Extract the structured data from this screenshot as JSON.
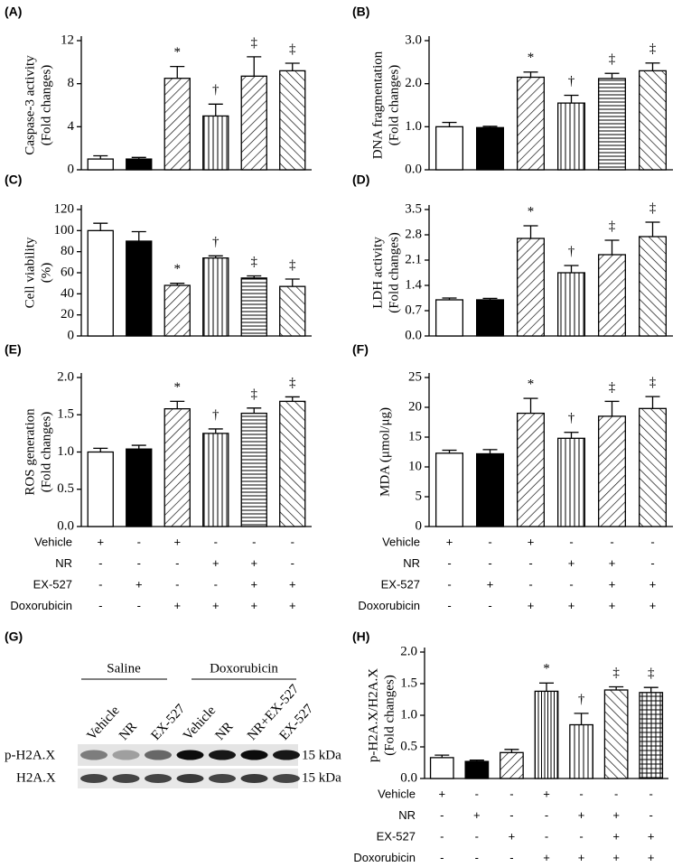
{
  "chart_data": [
    {
      "type": "bar",
      "panel": "(A)",
      "ylabel": [
        "Caspase-3 activity",
        "(Fold changes)"
      ],
      "ylim": [
        0,
        12
      ],
      "yticks": [
        0,
        4,
        8,
        12
      ],
      "categories": [
        null,
        null,
        null,
        null,
        null,
        null
      ],
      "values": [
        1.0,
        1.0,
        8.5,
        5.0,
        8.7,
        9.2
      ],
      "errors": [
        0.3,
        0.15,
        1.1,
        1.1,
        1.8,
        0.7
      ],
      "markers": [
        null,
        null,
        "*",
        "†",
        "‡",
        "‡"
      ],
      "patterns": [
        "none",
        "solid",
        "diag",
        "vert",
        "diag",
        "back"
      ],
      "color": "#000000"
    },
    {
      "type": "bar",
      "panel": "(B)",
      "ylabel": [
        "DNA fragmentation",
        "(Fold changes)"
      ],
      "ylim": [
        0,
        3
      ],
      "yticks": [
        {
          "value": 0,
          "label": "0.0"
        },
        {
          "value": 1,
          "label": "1.0"
        },
        {
          "value": 2,
          "label": "2.0"
        },
        {
          "value": 3,
          "label": "3.0"
        }
      ],
      "categories": [
        null,
        null,
        null,
        null,
        null,
        null
      ],
      "values": [
        1.0,
        0.98,
        2.15,
        1.55,
        2.12,
        2.3
      ],
      "errors": [
        0.1,
        0.03,
        0.12,
        0.18,
        0.12,
        0.18
      ],
      "markers": [
        null,
        null,
        "*",
        "†",
        "‡",
        "‡"
      ],
      "patterns": [
        "none",
        "solid",
        "diag",
        "vert",
        "horiz",
        "back"
      ],
      "color": "#000000"
    },
    {
      "type": "bar",
      "panel": "(C)",
      "ylabel": [
        "Cell viability",
        "(%)"
      ],
      "ylim": [
        0,
        120
      ],
      "yticks": [
        0,
        20,
        40,
        60,
        80,
        100,
        120
      ],
      "categories": [
        null,
        null,
        null,
        null,
        null,
        null
      ],
      "values": [
        100,
        90,
        48,
        74,
        55,
        47
      ],
      "errors": [
        7,
        9,
        2,
        2,
        2,
        7
      ],
      "markers": [
        null,
        null,
        "*",
        "†",
        "‡",
        "‡"
      ],
      "patterns": [
        "none",
        "solid",
        "diag",
        "vert",
        "horiz",
        "back"
      ],
      "color": "#000000"
    },
    {
      "type": "bar",
      "panel": "(D)",
      "ylabel": [
        "LDH activity",
        "(Fold changes)"
      ],
      "ylim": [
        0,
        3.5
      ],
      "yticks": [
        {
          "value": 0,
          "label": "0.0"
        },
        0.7,
        1.4,
        2.1,
        2.8,
        3.5
      ],
      "categories": [
        null,
        null,
        null,
        null,
        null,
        null
      ],
      "values": [
        1.0,
        1.0,
        2.7,
        1.75,
        2.25,
        2.75
      ],
      "errors": [
        0.05,
        0.04,
        0.35,
        0.2,
        0.4,
        0.4
      ],
      "markers": [
        null,
        null,
        "*",
        "†",
        "‡",
        "‡"
      ],
      "patterns": [
        "none",
        "solid",
        "diag",
        "vert",
        "diag",
        "back"
      ],
      "color": "#000000"
    },
    {
      "type": "bar",
      "panel": "(E)",
      "ylabel": [
        "ROS generation",
        "(Fold changes)"
      ],
      "ylim": [
        0,
        2
      ],
      "yticks": [
        {
          "value": 0,
          "label": "0.0"
        },
        0.5,
        {
          "value": 1,
          "label": "1.0"
        },
        1.5,
        {
          "value": 2,
          "label": "2.0"
        }
      ],
      "categories": [
        null,
        null,
        null,
        null,
        null,
        null
      ],
      "values": [
        1.0,
        1.04,
        1.58,
        1.25,
        1.52,
        1.68
      ],
      "errors": [
        0.05,
        0.05,
        0.1,
        0.06,
        0.07,
        0.06
      ],
      "markers": [
        null,
        null,
        "*",
        "†",
        "‡",
        "‡"
      ],
      "patterns": [
        "none",
        "solid",
        "diag",
        "vert",
        "horiz",
        "back"
      ],
      "color": "#000000",
      "treatments": [
        {
          "label": "Vehicle",
          "signs": [
            "+",
            "-",
            "+",
            "-",
            "-",
            "-"
          ]
        },
        {
          "label": "NR",
          "signs": [
            "-",
            "-",
            "-",
            "+",
            "+",
            "-"
          ]
        },
        {
          "label": "EX-527",
          "signs": [
            "-",
            "+",
            "-",
            "-",
            "+",
            "+"
          ]
        },
        {
          "label": "Doxorubicin",
          "signs": [
            "-",
            "-",
            "+",
            "+",
            "+",
            "+"
          ]
        }
      ]
    },
    {
      "type": "bar",
      "panel": "(F)",
      "ylabel": [
        "MDA (μmol/μg)"
      ],
      "ylim": [
        0,
        25
      ],
      "yticks": [
        0,
        5,
        10,
        15,
        20,
        25
      ],
      "categories": [
        null,
        null,
        null,
        null,
        null,
        null
      ],
      "values": [
        12.3,
        12.2,
        19,
        14.8,
        18.5,
        19.8
      ],
      "errors": [
        0.5,
        0.7,
        2.5,
        1,
        2.5,
        2
      ],
      "markers": [
        null,
        null,
        "*",
        "†",
        "‡",
        "‡"
      ],
      "patterns": [
        "none",
        "solid",
        "diag",
        "vert",
        "diag",
        "back"
      ],
      "color": "#000000",
      "treatments": [
        {
          "label": "Vehicle",
          "signs": [
            "+",
            "-",
            "+",
            "-",
            "-",
            "-"
          ]
        },
        {
          "label": "NR",
          "signs": [
            "-",
            "-",
            "-",
            "+",
            "+",
            "-"
          ]
        },
        {
          "label": "EX-527",
          "signs": [
            "-",
            "+",
            "-",
            "-",
            "+",
            "+"
          ]
        },
        {
          "label": "Doxorubicin",
          "signs": [
            "-",
            "-",
            "+",
            "+",
            "+",
            "+"
          ]
        }
      ]
    },
    {
      "type": "bar",
      "panel": "(H)",
      "ylabel": [
        "p-H2A.X/H2A.X",
        "(Fold changes)"
      ],
      "ylim": [
        0,
        2
      ],
      "yticks": [
        {
          "value": 0,
          "label": "0.0"
        },
        0.5,
        {
          "value": 1,
          "label": "1.0"
        },
        1.5,
        {
          "value": 2,
          "label": "2.0"
        }
      ],
      "categories": [
        null,
        null,
        null,
        null,
        null,
        null,
        null
      ],
      "values": [
        0.33,
        0.27,
        0.41,
        1.38,
        0.85,
        1.4,
        1.36
      ],
      "errors": [
        0.04,
        0.02,
        0.05,
        0.13,
        0.18,
        0.05,
        0.08
      ],
      "markers": [
        null,
        null,
        null,
        "*",
        "†",
        "‡",
        "‡"
      ],
      "patterns": [
        "none",
        "solid",
        "diag",
        "vertdense",
        "vert",
        "back",
        "grid"
      ],
      "color": "#000000",
      "treatments": [
        {
          "label": "Vehicle",
          "signs": [
            "+",
            "-",
            "-",
            "+",
            "-",
            "-",
            "-"
          ]
        },
        {
          "label": "NR",
          "signs": [
            "-",
            "+",
            "-",
            "-",
            "+",
            "+",
            "-"
          ]
        },
        {
          "label": "EX-527",
          "signs": [
            "-",
            "-",
            "+",
            "-",
            "-",
            "+",
            "+"
          ]
        },
        {
          "label": "Doxorubicin",
          "signs": [
            "-",
            "-",
            "-",
            "+",
            "+",
            "+",
            "+"
          ]
        }
      ]
    }
  ],
  "blot": {
    "panel": "(G)",
    "groups": [
      "Saline",
      "Doxorubicin"
    ],
    "lanes": [
      "Vehicle",
      "NR",
      "EX-527",
      "Vehicle",
      "NR",
      "NR+EX-527",
      "EX-527"
    ],
    "rows": [
      "p-H2A.X",
      "H2A.X"
    ],
    "sizes": [
      "15 kDa",
      "15 kDa"
    ]
  }
}
